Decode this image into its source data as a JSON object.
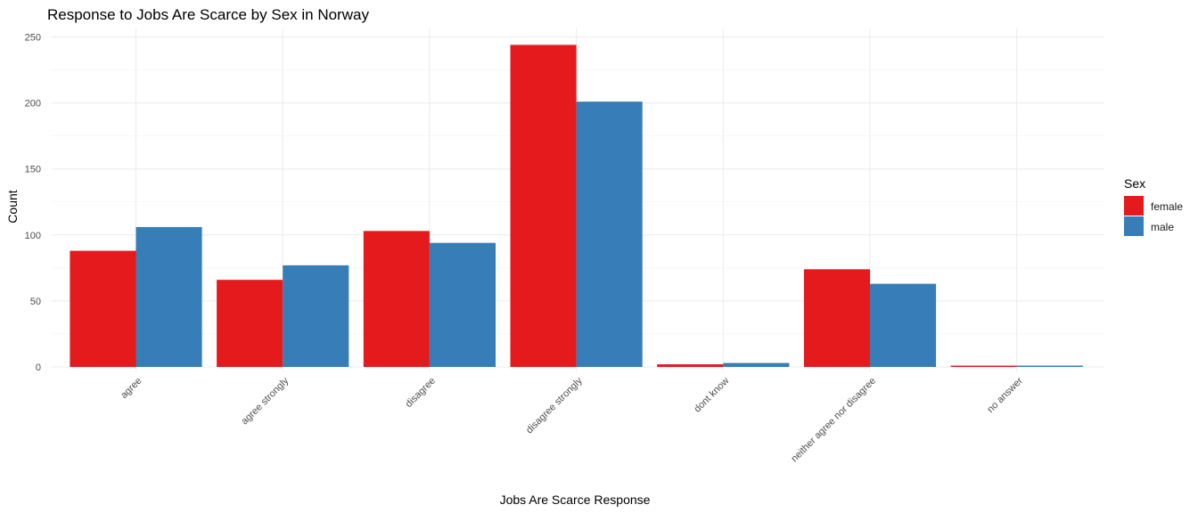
{
  "chart_data": {
    "type": "bar",
    "title": "Response to Jobs Are Scarce by Sex in Norway",
    "xlabel": "Jobs Are Scarce Response",
    "ylabel": "Count",
    "categories": [
      "agree",
      "agree strongly",
      "disagree",
      "disagree strongly",
      "dont know",
      "neither agree nor disagree",
      "no answer"
    ],
    "series": [
      {
        "name": "female",
        "color": "#e41a1c",
        "values": [
          88,
          66,
          103,
          244,
          2,
          74,
          1
        ]
      },
      {
        "name": "male",
        "color": "#377eb8",
        "values": [
          106,
          77,
          94,
          201,
          3,
          63,
          1
        ]
      }
    ],
    "ylim": [
      0,
      250
    ],
    "yticks": [
      0,
      50,
      100,
      150,
      200,
      250
    ],
    "grid": true,
    "legend": {
      "title": "Sex",
      "position": "right"
    }
  }
}
